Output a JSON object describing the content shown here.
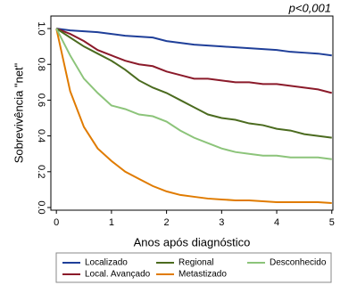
{
  "chart_data": {
    "type": "line",
    "annotation": "p<0,001",
    "xlabel": "Anos após diagnóstico",
    "ylabel": "Sobrevivência \"net\"",
    "x": [
      0,
      0.25,
      0.5,
      0.75,
      1,
      1.25,
      1.5,
      1.75,
      2,
      2.25,
      2.5,
      2.75,
      3,
      3.25,
      3.5,
      3.75,
      4,
      4.25,
      4.5,
      4.75,
      5
    ],
    "xlim": [
      -0.1,
      5.02
    ],
    "ylim": [
      -0.015,
      1.07
    ],
    "xticks": [
      0,
      1,
      2,
      3,
      4,
      5
    ],
    "yticks": [
      {
        "value": 0,
        "label": "0.0"
      },
      0.2,
      0.4,
      0.6,
      0.8,
      {
        "value": 1,
        "label": "1.0"
      }
    ],
    "series": [
      {
        "name": "Localizado",
        "color": "#1f3f99",
        "values": [
          1.0,
          0.99,
          0.985,
          0.98,
          0.97,
          0.96,
          0.955,
          0.95,
          0.93,
          0.92,
          0.91,
          0.905,
          0.9,
          0.895,
          0.89,
          0.885,
          0.88,
          0.87,
          0.865,
          0.86,
          0.85
        ]
      },
      {
        "name": "Local. Avançado",
        "color": "#8b1a2a",
        "values": [
          1.0,
          0.97,
          0.93,
          0.88,
          0.85,
          0.82,
          0.8,
          0.79,
          0.76,
          0.74,
          0.72,
          0.72,
          0.71,
          0.7,
          0.7,
          0.69,
          0.69,
          0.68,
          0.67,
          0.66,
          0.64
        ]
      },
      {
        "name": "Regional",
        "color": "#4b6b1f",
        "values": [
          1.0,
          0.95,
          0.9,
          0.86,
          0.82,
          0.77,
          0.71,
          0.67,
          0.64,
          0.6,
          0.56,
          0.52,
          0.5,
          0.49,
          0.47,
          0.46,
          0.44,
          0.43,
          0.41,
          0.4,
          0.39
        ]
      },
      {
        "name": "Metastizado",
        "color": "#e07b00",
        "values": [
          1.0,
          0.65,
          0.45,
          0.33,
          0.26,
          0.2,
          0.16,
          0.12,
          0.09,
          0.07,
          0.06,
          0.05,
          0.045,
          0.04,
          0.04,
          0.035,
          0.03,
          0.03,
          0.03,
          0.03,
          0.025
        ]
      },
      {
        "name": "Desconhecido",
        "color": "#8cc47a",
        "values": [
          1.0,
          0.85,
          0.72,
          0.64,
          0.57,
          0.55,
          0.52,
          0.51,
          0.48,
          0.43,
          0.39,
          0.36,
          0.33,
          0.31,
          0.3,
          0.29,
          0.29,
          0.28,
          0.28,
          0.28,
          0.27
        ]
      }
    ]
  }
}
